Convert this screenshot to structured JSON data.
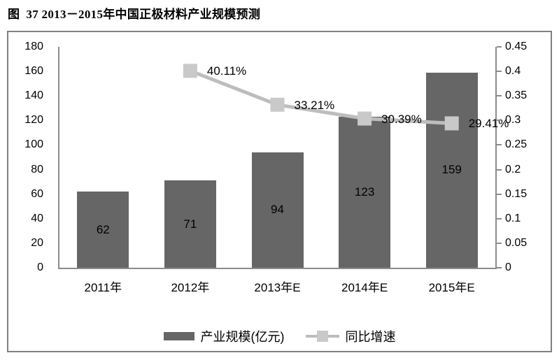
{
  "title": "图  37 2013－2015年中国正极材料产业规模预测",
  "chart_data": {
    "type": "combo-bar-line",
    "categories": [
      "2011年",
      "2012年",
      "2013年E",
      "2014年E",
      "2015年E"
    ],
    "series": [
      {
        "name": "产业规模(亿元)",
        "type": "bar",
        "axis": "left",
        "values": [
          62,
          71,
          94,
          123,
          159
        ],
        "labels": [
          "62",
          "71",
          "94",
          "123",
          "159"
        ]
      },
      {
        "name": "同比增速",
        "type": "line",
        "axis": "right",
        "values": [
          null,
          0.4011,
          0.3321,
          0.3039,
          0.2941
        ],
        "labels": [
          null,
          "40.11%",
          "33.21%",
          "30.39%",
          "29.41%"
        ]
      }
    ],
    "left_axis": {
      "min": 0,
      "max": 180,
      "step": 20,
      "ticks": [
        "180",
        "160",
        "140",
        "120",
        "100",
        "80",
        "60",
        "40",
        "20",
        "0"
      ]
    },
    "right_axis": {
      "min": 0,
      "max": 0.45,
      "step": 0.05,
      "ticks": [
        "0.45",
        "0.4",
        "0.35",
        "0.3",
        "0.25",
        "0.2",
        "0.15",
        "0.1",
        "0.05",
        "0"
      ]
    },
    "grid": false,
    "legend_position": "bottom-center"
  },
  "colors": {
    "bar": "#666666",
    "line": "#BDBDBD",
    "marker": "#C9C9C9",
    "axis": "#8C8C8C",
    "frame_border": "#808080",
    "label_text": "#000000"
  }
}
